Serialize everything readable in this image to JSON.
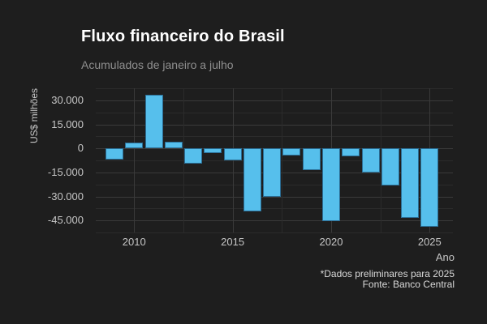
{
  "header": {
    "title": "Fluxo financeiro do Brasil",
    "subtitle": "Acumulados de janeiro a julho"
  },
  "footer": {
    "caption_line1": "*Dados preliminares para 2025",
    "caption_line2": "Fonte: Banco Central"
  },
  "chart_data": {
    "type": "bar",
    "title": "Fluxo financeiro do Brasil",
    "subtitle": "Acumulados de janeiro a julho",
    "xlabel": "Ano",
    "ylabel": "US$ milhões",
    "x": [
      2009,
      2010,
      2011,
      2012,
      2013,
      2014,
      2015,
      2016,
      2017,
      2018,
      2019,
      2020,
      2021,
      2022,
      2023,
      2024,
      2025
    ],
    "values": [
      -6800,
      3400,
      33400,
      4100,
      -9400,
      -3000,
      -7700,
      -39500,
      -30500,
      -4300,
      -13800,
      -45500,
      -4800,
      -15300,
      -23000,
      -43500,
      -49000
    ],
    "ylim": [
      -52500,
      37500
    ],
    "grid": "major+minor, horizontal and vertical",
    "legend": "none",
    "yticks": [
      {
        "value": 30000,
        "label": "30.000"
      },
      {
        "value": 15000,
        "label": "15.000"
      },
      {
        "value": 0,
        "label": "0"
      },
      {
        "value": -15000,
        "label": "-15.000"
      },
      {
        "value": -30000,
        "label": "-30.000"
      },
      {
        "value": -45000,
        "label": "-45.000"
      }
    ],
    "minor_y_gridlines": [
      37500,
      22500,
      7500,
      -7500,
      -22500,
      -37500,
      -52500
    ],
    "xticks": [
      {
        "value": 2010,
        "label": "2010"
      },
      {
        "value": 2015,
        "label": "2015"
      },
      {
        "value": 2020,
        "label": "2020"
      },
      {
        "value": 2025,
        "label": "2025"
      }
    ],
    "minor_x_gridlines": [
      2012.5,
      2017.5,
      2022.5
    ],
    "colors": {
      "background": "#1e1e1e",
      "bar_fill": "#56bfec",
      "bar_stroke": "#2b6e96",
      "grid_major": "#3a3a3a",
      "grid_minor": "#2b2b2b",
      "title_text": "#ffffff",
      "subtitle_text": "#8f8f8f",
      "tick_text": "#c6c6c6",
      "caption_text": "#d9d9d9"
    }
  }
}
